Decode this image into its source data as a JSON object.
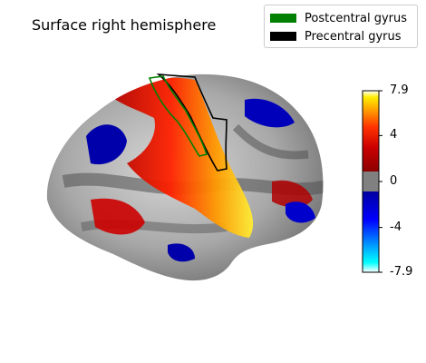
{
  "title": "Surface right hemisphere",
  "legend": [
    {
      "label": "Postcentral gyrus",
      "color": "#008000"
    },
    {
      "label": "Precentral gyrus",
      "color": "#000000"
    }
  ],
  "colorbar": {
    "min": -7.9,
    "max": 7.9,
    "threshold": 1,
    "ticks": [
      {
        "value": 7.9,
        "label": "7.9"
      },
      {
        "value": 4,
        "label": "4"
      },
      {
        "value": 0,
        "label": "0"
      },
      {
        "value": -4,
        "label": "-4"
      },
      {
        "value": -7.9,
        "label": "-7.9"
      }
    ],
    "colors": {
      "positive": [
        "#8b0000",
        "#cc0000",
        "#ff3300",
        "#ff9900",
        "#ffee00",
        "#ffffff"
      ],
      "negative": [
        "#0000a0",
        "#0000ff",
        "#00aaff",
        "#00ffff",
        "#ffffff"
      ],
      "neutral": "#808080"
    }
  },
  "regions": [
    {
      "name": "Postcentral gyrus",
      "outline_color": "#008000"
    },
    {
      "name": "Precentral gyrus",
      "outline_color": "#000000"
    }
  ]
}
